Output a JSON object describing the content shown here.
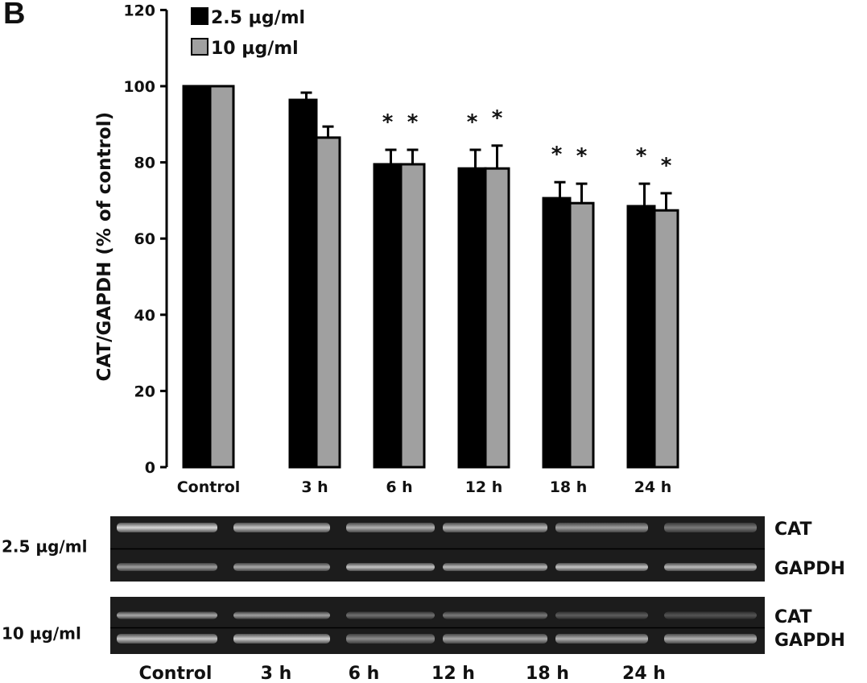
{
  "panel_label": "B",
  "colors": {
    "series_1": "#000000",
    "series_2": "#a0a0a0",
    "blot_bg": "#1c1c1c",
    "band": "#d8d8d8"
  },
  "chart_data": {
    "type": "bar",
    "title": "",
    "xlabel": "",
    "ylabel": "CAT/GAPDH (% of control)",
    "ylim": [
      0,
      120
    ],
    "yticks": [
      0,
      20,
      40,
      60,
      80,
      100,
      120
    ],
    "grid": false,
    "legend": "top-left",
    "categories": [
      "Control",
      "3 h",
      "6 h",
      "12 h",
      "18 h",
      "24 h"
    ],
    "series": [
      {
        "name": "2.5 µg/ml",
        "color": "#000000",
        "values": [
          100,
          96.4,
          79.5,
          78.4,
          70.6,
          68.5
        ],
        "errors": [
          0,
          1.9,
          3.8,
          4.9,
          4.2,
          5.9
        ],
        "significant": [
          false,
          false,
          true,
          true,
          true,
          true
        ]
      },
      {
        "name": "10 µg/ml",
        "color": "#a0a0a0",
        "values": [
          100,
          86.5,
          79.5,
          78.4,
          69.3,
          67.4
        ],
        "errors": [
          0,
          2.9,
          3.8,
          6.0,
          5.1,
          4.5
        ],
        "significant": [
          false,
          false,
          true,
          true,
          true,
          true
        ]
      }
    ],
    "significance_marker": "*"
  },
  "blots": {
    "rows": [
      {
        "label": "2.5 µg/ml",
        "bands": [
          "CAT",
          "GAPDH"
        ]
      },
      {
        "label": "10 µg/ml",
        "bands": [
          "CAT",
          "GAPDH"
        ]
      }
    ],
    "lanes": [
      "Control",
      "3 h",
      "6 h",
      "12 h",
      "18 h",
      "24 h"
    ]
  }
}
